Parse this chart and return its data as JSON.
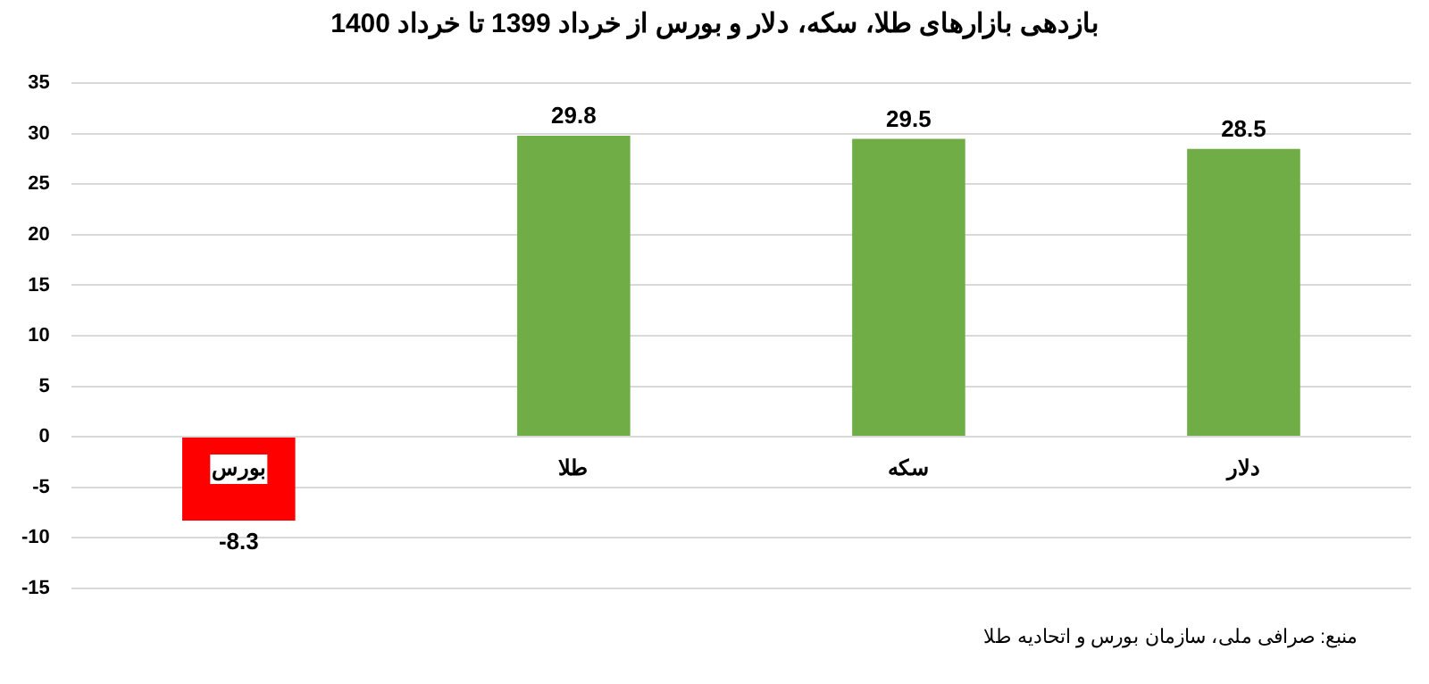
{
  "chart_data": {
    "type": "bar",
    "title": "بازدهی بازارهای طلا، سکه، دلار و بورس از خرداد 1399 تا خرداد 1400",
    "categories": [
      "بورس",
      "طلا",
      "سکه",
      "دلار"
    ],
    "values": [
      -8.3,
      29.8,
      29.5,
      28.5
    ],
    "colors": [
      "#ff0000",
      "#70ad47",
      "#70ad47",
      "#70ad47"
    ],
    "ylim": [
      -15,
      35
    ],
    "yticks": [
      -15,
      -10,
      -5,
      0,
      5,
      10,
      15,
      20,
      25,
      30,
      35
    ],
    "grid": "y",
    "data_labels": true,
    "annotations": [
      "منبع: صرافی ملی، سازمان بورس و اتحادیه طلا"
    ]
  }
}
